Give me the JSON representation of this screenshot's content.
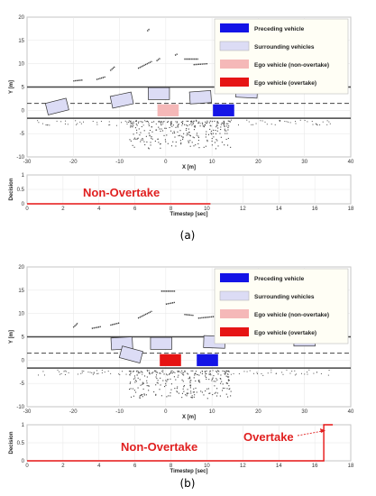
{
  "chart_data": [
    {
      "type": "scatter",
      "panel": "(a)",
      "xlabel": "X [m]",
      "ylabel": "Y [m]",
      "xlim": [
        -30,
        40
      ],
      "ylim": [
        -10,
        20
      ],
      "xticks": [
        -30,
        -20,
        -10,
        0,
        10,
        20,
        30,
        40
      ],
      "yticks": [
        -10,
        -5,
        0,
        5,
        10,
        15,
        20
      ],
      "lane_lines": [
        {
          "y": 5,
          "style": "solid"
        },
        {
          "y": 1.5,
          "style": "dashed"
        },
        {
          "y": -1.7,
          "style": "solid"
        }
      ],
      "legend": {
        "placement": "top-right",
        "entries": [
          {
            "label": "Preceding vehicle",
            "color": "#1414e6"
          },
          {
            "label": "Surrounding vehicles",
            "color": "#dcdcf5"
          },
          {
            "label": "Ego vehicle (non-overtake)",
            "color": "#f5b8b8"
          },
          {
            "label": "Ego vehicle (overtake)",
            "color": "#e61414"
          }
        ]
      },
      "vehicles": [
        {
          "role": "surrounding",
          "cx": -23.5,
          "cy": 0.8,
          "len": 4.6,
          "wid": 1.9,
          "angle": -14
        },
        {
          "role": "surrounding",
          "cx": -9.5,
          "cy": 2.2,
          "len": 4.6,
          "wid": 1.9,
          "angle": -12
        },
        {
          "role": "surrounding",
          "cx": -1.5,
          "cy": 3.6,
          "len": 4.6,
          "wid": 1.9,
          "angle": 0
        },
        {
          "role": "surrounding",
          "cx": 7.5,
          "cy": 2.8,
          "len": 4.6,
          "wid": 1.9,
          "angle": -4
        },
        {
          "role": "surrounding",
          "cx": 17.5,
          "cy": 4.0,
          "len": 4.6,
          "wid": 1.9,
          "angle": 3
        },
        {
          "role": "ego_non_overtake",
          "cx": 0.5,
          "cy": 0.0,
          "len": 4.6,
          "wid": 1.9,
          "angle": 0
        },
        {
          "role": "preceding",
          "cx": 12.5,
          "cy": 0.0,
          "len": 4.6,
          "wid": 1.9,
          "angle": 0
        }
      ],
      "lidar_seed": 11
    },
    {
      "type": "line",
      "panel": "(a)",
      "xlabel": "Timestep [sec]",
      "ylabel": "Decision",
      "xlim": [
        0,
        18
      ],
      "ylim": [
        0,
        1
      ],
      "xticks": [
        0,
        2,
        4,
        6,
        8,
        10,
        12,
        14,
        16,
        18
      ],
      "yticks": [
        0,
        0.5,
        1
      ],
      "series": [
        {
          "x": [
            0,
            10.2
          ],
          "y": [
            0,
            0
          ],
          "color": "#e61414"
        }
      ],
      "annotations": [
        "Non-Overtake"
      ]
    },
    {
      "type": "scatter",
      "panel": "(b)",
      "xlabel": "X [m]",
      "ylabel": "Y [m]",
      "xlim": [
        -30,
        40
      ],
      "ylim": [
        -10,
        20
      ],
      "xticks": [
        -30,
        -20,
        -10,
        0,
        10,
        20,
        30,
        40
      ],
      "yticks": [
        -10,
        -5,
        0,
        5,
        10,
        15,
        20
      ],
      "lane_lines": [
        {
          "y": 5,
          "style": "solid"
        },
        {
          "y": 1.5,
          "style": "dashed"
        },
        {
          "y": -1.7,
          "style": "solid"
        }
      ],
      "legend": {
        "placement": "top-right",
        "entries": [
          {
            "label": "Preceding vehicle",
            "color": "#1414e6"
          },
          {
            "label": "Surrounding vehicles",
            "color": "#dcdcf5"
          },
          {
            "label": "Ego vehicle (non-overtake)",
            "color": "#f5b8b8"
          },
          {
            "label": "Ego vehicle (overtake)",
            "color": "#e61414"
          }
        ]
      },
      "vehicles": [
        {
          "role": "surrounding",
          "cx": -9.5,
          "cy": 3.6,
          "len": 4.6,
          "wid": 1.9,
          "angle": -3
        },
        {
          "role": "surrounding",
          "cx": -7.5,
          "cy": 1.2,
          "len": 4.6,
          "wid": 1.9,
          "angle": 15
        },
        {
          "role": "surrounding",
          "cx": -1.0,
          "cy": 3.6,
          "len": 4.6,
          "wid": 1.9,
          "angle": 0
        },
        {
          "role": "surrounding",
          "cx": 10.5,
          "cy": 3.9,
          "len": 4.6,
          "wid": 1.9,
          "angle": 2
        },
        {
          "role": "surrounding",
          "cx": 30.0,
          "cy": 4.3,
          "len": 4.6,
          "wid": 1.9,
          "angle": 0
        },
        {
          "role": "ego_overtake",
          "cx": 1.0,
          "cy": 0.0,
          "len": 4.6,
          "wid": 1.9,
          "angle": 0
        },
        {
          "role": "preceding",
          "cx": 9.0,
          "cy": 0.0,
          "len": 4.6,
          "wid": 1.9,
          "angle": 0
        }
      ],
      "lidar_seed": 29
    },
    {
      "type": "line",
      "panel": "(b)",
      "xlabel": "Timestep [sec]",
      "ylabel": "Decision",
      "xlim": [
        0,
        18
      ],
      "ylim": [
        0,
        1
      ],
      "xticks": [
        0,
        2,
        4,
        6,
        8,
        10,
        12,
        14,
        16,
        18
      ],
      "yticks": [
        0,
        0.5,
        1
      ],
      "series": [
        {
          "x": [
            0,
            16.5,
            16.5,
            17.0
          ],
          "y": [
            0,
            0,
            1,
            1
          ],
          "color": "#e61414"
        }
      ],
      "annotations": [
        "Non-Overtake",
        "Overtake"
      ]
    }
  ],
  "captions": {
    "a": "(a)",
    "b": "(b)"
  }
}
